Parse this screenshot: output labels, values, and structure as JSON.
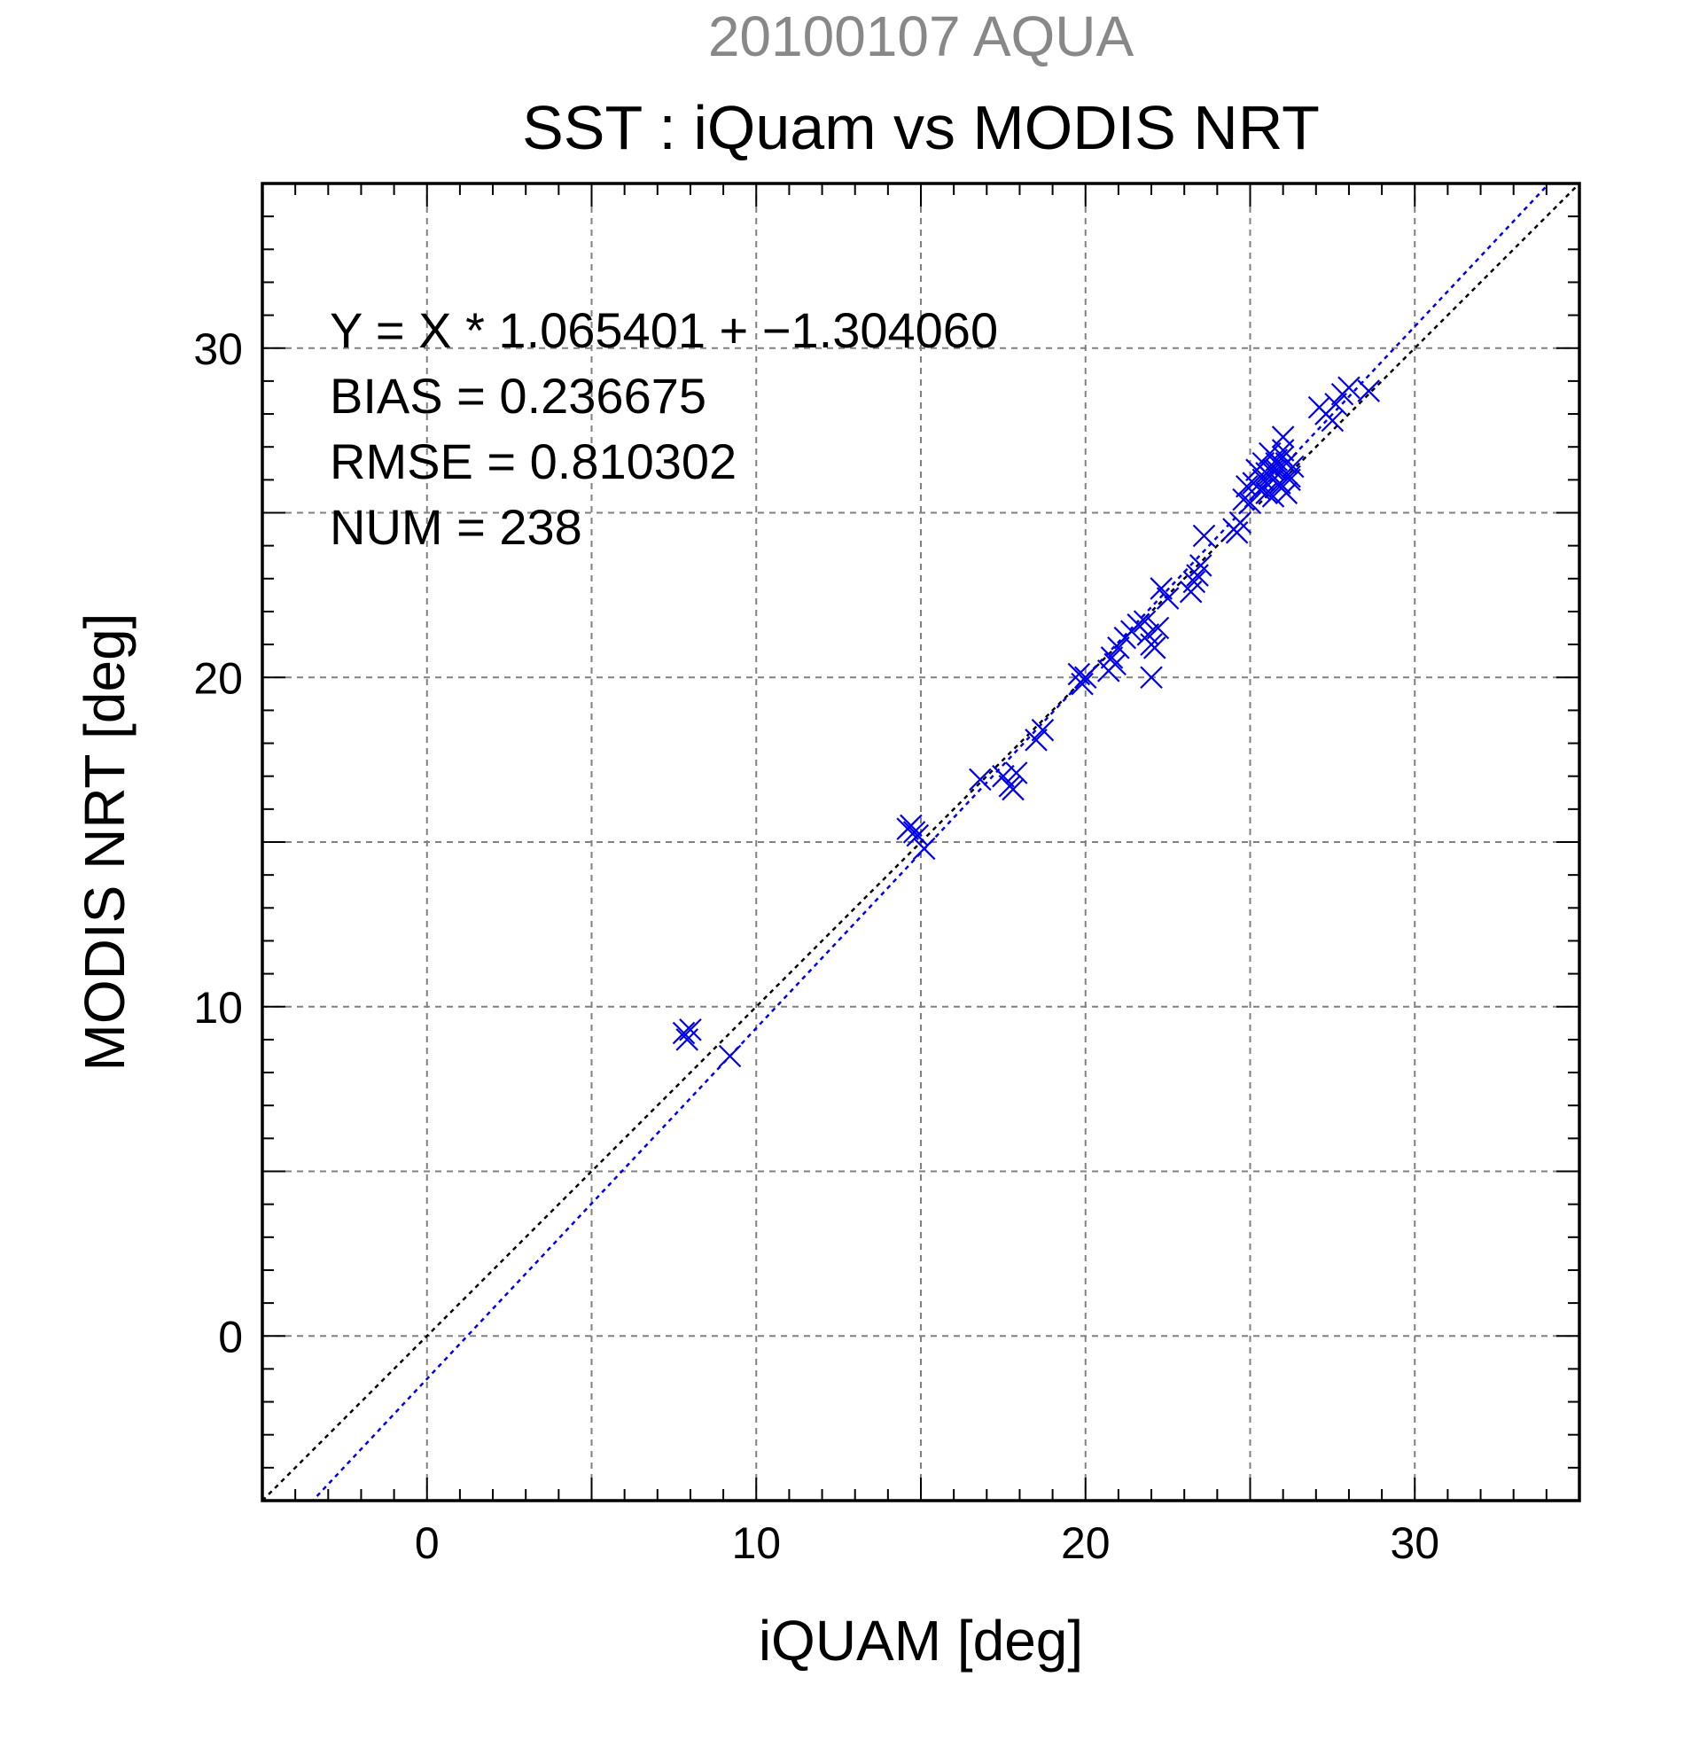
{
  "chart_data": {
    "type": "scatter",
    "subtitle": "20100107 AQUA",
    "title": "SST : iQuam vs MODIS NRT",
    "xlabel": "iQUAM [deg]",
    "ylabel": "MODIS NRT [deg]",
    "xlim": [
      -5,
      35
    ],
    "ylim": [
      -5,
      35
    ],
    "xticks": [
      0,
      10,
      20,
      30
    ],
    "yticks": [
      0,
      10,
      20,
      30
    ],
    "grid": true,
    "stats": [
      "Y = X * 1.065401 + −1.304060",
      "BIAS = 0.236675",
      "RMSE = 0.810302",
      "NUM = 238"
    ],
    "fit": {
      "slope": 1.065401,
      "intercept": -1.30406,
      "color": "#0000ee"
    },
    "identity_line_color": "#000000",
    "marker_color": "#0000ee",
    "series": [
      {
        "marker": "x",
        "x": [
          7.8,
          7.9,
          8.0,
          9.2,
          14.6,
          14.7,
          14.8,
          14.9,
          15.1,
          16.8,
          17.5,
          17.7,
          17.8,
          17.9,
          18.5,
          18.7,
          19.8,
          19.9,
          20.0,
          20.7,
          20.8,
          20.9,
          21.0,
          21.2,
          21.4,
          21.6,
          21.8,
          21.9,
          22.0,
          22.0,
          22.1,
          22.2,
          22.3,
          22.5,
          23.2,
          23.3,
          23.4,
          23.5,
          23.6,
          24.5,
          24.6,
          24.7,
          24.8,
          24.9,
          25.0,
          25.1,
          25.2,
          25.3,
          25.4,
          25.5,
          25.6,
          25.7,
          25.8,
          25.9,
          26.0,
          26.1,
          26.2,
          26.3,
          25.5,
          25.6,
          25.7,
          25.8,
          25.9,
          26.0,
          25.4,
          25.8,
          26.1,
          26.0,
          25.7,
          26.2,
          27.1,
          27.3,
          27.5,
          27.6,
          27.8,
          28.0,
          28.6
        ],
        "y": [
          9.2,
          9.0,
          9.3,
          8.5,
          15.4,
          15.5,
          15.3,
          15.2,
          14.8,
          16.9,
          17.0,
          16.7,
          16.6,
          17.1,
          18.1,
          18.4,
          20.1,
          19.8,
          20.0,
          20.2,
          20.6,
          20.4,
          20.9,
          21.2,
          21.4,
          21.6,
          21.7,
          21.3,
          21.0,
          20.0,
          20.9,
          21.5,
          22.7,
          22.4,
          22.6,
          22.9,
          23.1,
          23.4,
          24.3,
          24.5,
          24.4,
          24.7,
          25.4,
          25.8,
          25.3,
          25.9,
          26.3,
          25.7,
          26.5,
          26.2,
          26.8,
          26.0,
          26.6,
          25.8,
          27.3,
          26.5,
          26.0,
          26.4,
          25.6,
          26.1,
          25.5,
          26.3,
          25.9,
          26.7,
          26.0,
          26.5,
          25.6,
          26.9,
          26.3,
          26.1,
          28.2,
          28.0,
          27.8,
          28.3,
          28.6,
          28.8,
          28.7
        ]
      }
    ]
  }
}
